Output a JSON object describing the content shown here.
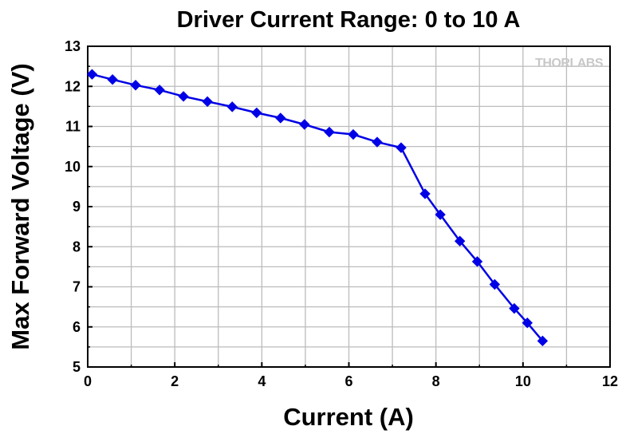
{
  "chart_data": {
    "type": "line",
    "title": "Driver Current Range: 0 to 10 A",
    "xlabel": "Current (A)",
    "ylabel": "Max Forward Voltage (V)",
    "xlim": [
      0,
      12
    ],
    "ylim": [
      5,
      13
    ],
    "x_ticks": [
      0,
      2,
      4,
      6,
      8,
      10,
      12
    ],
    "y_ticks": [
      5,
      6,
      7,
      8,
      9,
      10,
      11,
      12,
      13
    ],
    "grid": true,
    "legend": "none",
    "watermark": "THORLABS",
    "series": [
      {
        "color": "#0000e6",
        "marker": "diamond",
        "x": [
          0.1,
          0.57,
          1.1,
          1.65,
          2.2,
          2.75,
          3.32,
          3.88,
          4.43,
          4.98,
          5.55,
          6.1,
          6.65,
          7.2,
          7.75,
          8.1,
          8.55,
          8.95,
          9.35,
          9.8,
          10.1,
          10.45
        ],
        "y": [
          12.3,
          12.17,
          12.03,
          11.91,
          11.75,
          11.62,
          11.49,
          11.34,
          11.21,
          11.05,
          10.86,
          10.8,
          10.61,
          10.47,
          9.32,
          8.8,
          8.14,
          7.63,
          7.06,
          6.46,
          6.1,
          5.65
        ]
      }
    ]
  }
}
